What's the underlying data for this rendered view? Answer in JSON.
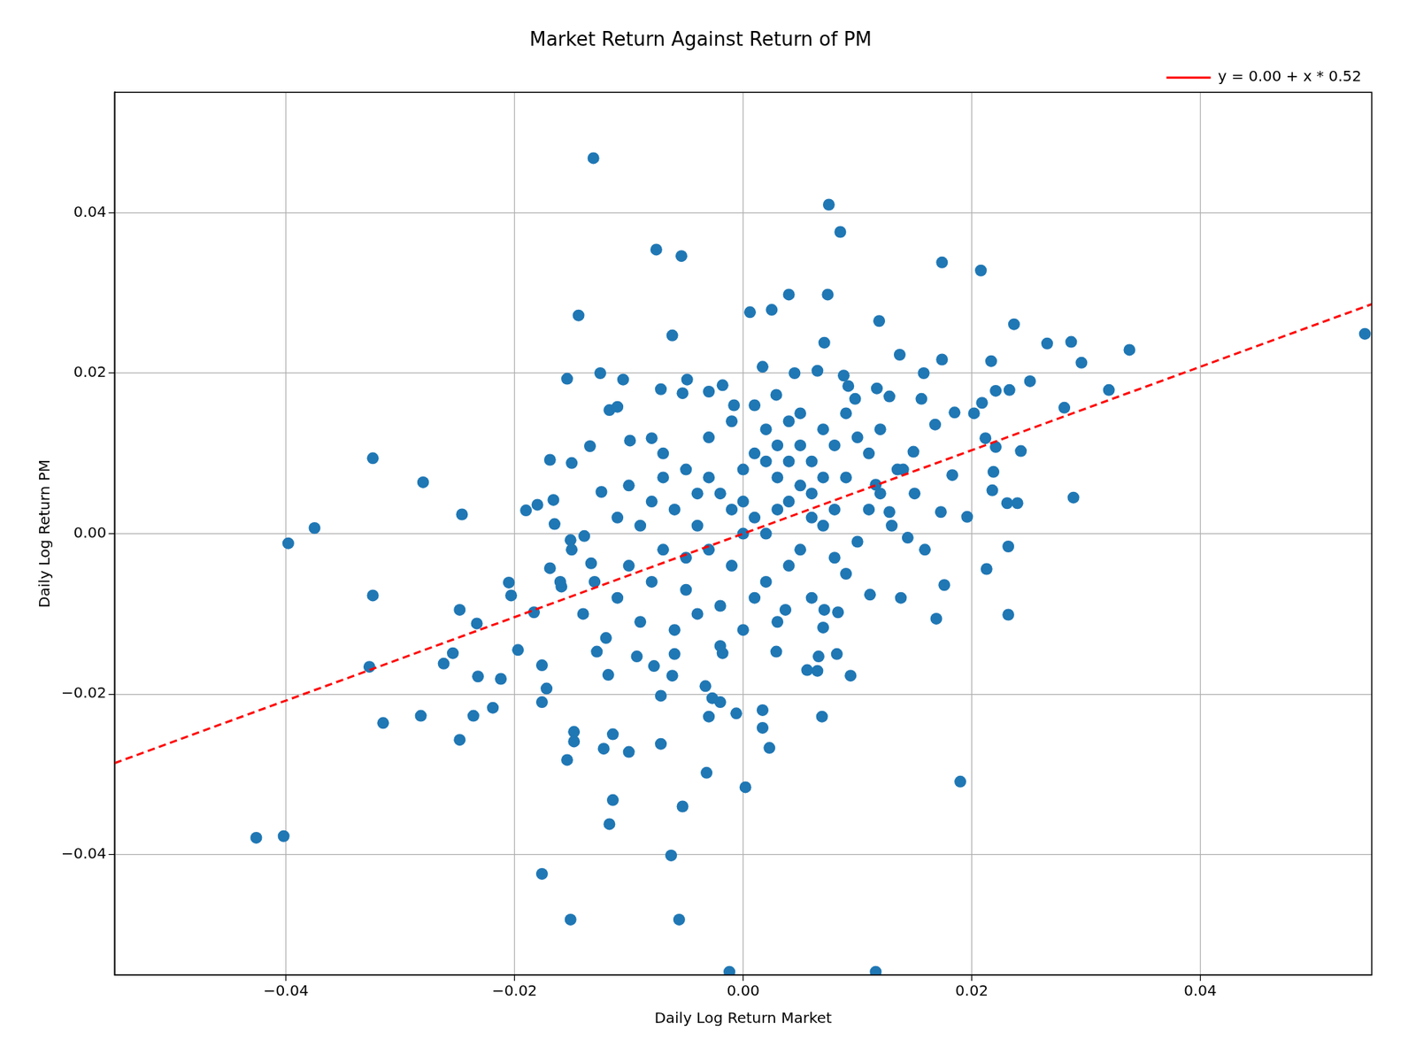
{
  "chart_data": {
    "type": "scatter",
    "title": "Market Return Against Return of PM",
    "x_label": "Daily Log Return Market",
    "y_label": "Daily Log Return PM",
    "xlim": [
      -0.055,
      0.055
    ],
    "ylim": [
      -0.055,
      0.055
    ],
    "xticks": [
      {
        "value": -0.04,
        "label": "−0.04"
      },
      {
        "value": -0.02,
        "label": "−0.02"
      },
      {
        "value": 0,
        "label": "0.00"
      },
      {
        "value": 0.02,
        "label": "0.02"
      },
      {
        "value": 0.04,
        "label": "0.04"
      }
    ],
    "yticks": [
      {
        "value": -0.04,
        "label": "−0.04"
      },
      {
        "value": -0.02,
        "label": "−0.02"
      },
      {
        "value": 0,
        "label": "0.00"
      },
      {
        "value": 0.02,
        "label": "0.02"
      },
      {
        "value": 0.04,
        "label": "0.04"
      }
    ],
    "grid": true,
    "legend": "upper right",
    "series": [
      {
        "type": "scatter",
        "color": "#1f77b4",
        "marker": "circle",
        "x": [
          -0.0131,
          0.0075,
          0.0085,
          -0.0076,
          -0.0054,
          0.0174,
          0.0208,
          -0.0144,
          0.004,
          0.0074,
          0.0006,
          0.0025,
          -0.0062,
          0.0119,
          0.0237,
          0.0544,
          0.0266,
          0.0287,
          0.0338,
          0.0296,
          0.032,
          0.0281,
          0.0217,
          0.0174,
          0.0137,
          0.0071,
          -0.0154,
          -0.0125,
          -0.0105,
          -0.0134,
          -0.0324,
          -0.028,
          -0.0375,
          -0.0398,
          -0.0246,
          -0.0324,
          -0.0327,
          -0.0315,
          -0.0282,
          -0.0248,
          -0.0236,
          -0.0219,
          -0.0212,
          -0.0232,
          -0.0262,
          -0.0254,
          -0.0248,
          -0.0233,
          -0.0426,
          -0.0402,
          -0.0176,
          -0.0151,
          -0.0056,
          -0.0063,
          -0.0117,
          -0.0114,
          -0.0154,
          -0.0148,
          -0.0148,
          -0.0122,
          -0.0114,
          -0.01,
          -0.0072,
          -0.0053,
          -0.0032,
          0.0002,
          -0.0012,
          0.0116,
          -0.0006,
          0.0017,
          0.0017,
          0.0023,
          0.0069,
          0.019,
          0.0232,
          0.0213,
          0.0232,
          0.0289,
          0.024,
          0.0231,
          0.0169,
          0.0176,
          0.0138,
          0.0111,
          0.0071,
          0.0083,
          0.0094,
          0.0082,
          0.0066,
          0.007,
          0.0065,
          0.0056,
          0.0037,
          0.0029,
          -0.0033,
          -0.003,
          -0.002,
          -0.0027,
          -0.0018,
          -0.0072,
          -0.0062,
          -0.0078,
          -0.0093,
          -0.0118,
          -0.0128,
          -0.0176,
          -0.0172,
          -0.0176,
          -0.0197,
          -0.0183,
          -0.0205,
          -0.0203,
          -0.019,
          -0.018,
          -0.0166,
          -0.0169,
          -0.015,
          -0.0165,
          -0.0151,
          -0.0169,
          -0.0159,
          -0.0133,
          -0.0139,
          -0.0124,
          -0.0117,
          -0.011,
          -0.0099,
          -0.008,
          -0.0072,
          -0.0053,
          -0.0049,
          -0.003,
          -0.0018,
          -0.0008,
          0.0017,
          0.0029,
          0.0045,
          0.0065,
          0.0088,
          0.0092,
          0.0098,
          0.0117,
          0.0128,
          0.0156,
          0.0158,
          0.0185,
          0.0202,
          0.0209,
          0.0221,
          0.0233,
          0.0251,
          0.0212,
          0.0221,
          0.0243,
          0.0219,
          0.0218,
          0.0183,
          0.0196,
          0.0173,
          0.0159,
          0.0144,
          0.0128,
          0.0168,
          0.0149,
          0.0135,
          0.0116,
          -0.008,
          -0.007,
          -0.006,
          -0.005,
          -0.004,
          -0.003,
          -0.002,
          -0.001,
          0.0,
          0.001,
          0.002,
          0.003,
          0.004,
          0.005,
          0.006,
          0.007,
          0.008,
          0.009,
          0.01,
          0.011,
          0.012,
          -0.009,
          -0.01,
          -0.011,
          -0.012,
          -0.013,
          -0.008,
          -0.007,
          -0.006,
          -0.005,
          -0.004,
          -0.003,
          -0.002,
          -0.001,
          0.0,
          0.001,
          0.002,
          0.003,
          0.004,
          0.005,
          0.006,
          0.007,
          0.008,
          0.009,
          0.01,
          0.013,
          0.014,
          0.015,
          -0.014,
          -0.015,
          -0.016,
          -0.009,
          -0.01,
          -0.003,
          0.0,
          0.001,
          0.002,
          0.003,
          0.004,
          0.005,
          0.006,
          -0.002,
          -0.001,
          0.0,
          0.001,
          0.002,
          0.003,
          0.004,
          0.005,
          0.006,
          0.007,
          0.008,
          -0.004,
          -0.005,
          -0.006,
          -0.007,
          0.011,
          0.012,
          0.009,
          -0.011
        ],
        "values": [
          0.0468,
          0.041,
          0.0376,
          0.0354,
          0.0346,
          0.0338,
          0.0328,
          0.0272,
          0.0298,
          0.0298,
          0.0276,
          0.0279,
          0.0247,
          0.0265,
          0.0261,
          0.0249,
          0.0237,
          0.0239,
          0.0229,
          0.0213,
          0.0179,
          0.0157,
          0.0215,
          0.0217,
          0.0223,
          0.0238,
          0.0193,
          0.02,
          0.0192,
          0.0109,
          0.0094,
          0.0064,
          0.0007,
          -0.0012,
          0.0024,
          -0.0077,
          -0.0166,
          -0.0236,
          -0.0227,
          -0.0257,
          -0.0227,
          -0.0217,
          -0.0181,
          -0.0178,
          -0.0162,
          -0.0149,
          -0.0095,
          -0.0112,
          -0.0379,
          -0.0377,
          -0.0424,
          -0.0481,
          -0.0481,
          -0.0401,
          -0.0362,
          -0.0332,
          -0.0282,
          -0.0247,
          -0.0259,
          -0.0268,
          -0.025,
          -0.0272,
          -0.0262,
          -0.034,
          -0.0298,
          -0.0316,
          -0.0546,
          -0.0546,
          -0.0224,
          -0.022,
          -0.0242,
          -0.0267,
          -0.0228,
          -0.0309,
          -0.0101,
          -0.0044,
          -0.0016,
          0.0045,
          0.0038,
          0.0038,
          -0.0106,
          -0.0064,
          -0.008,
          -0.0076,
          -0.0095,
          -0.0098,
          -0.0177,
          -0.015,
          -0.0153,
          -0.0117,
          -0.0171,
          -0.017,
          -0.0095,
          -0.0147,
          -0.019,
          -0.0228,
          -0.021,
          -0.0205,
          -0.0149,
          -0.0202,
          -0.0177,
          -0.0165,
          -0.0153,
          -0.0176,
          -0.0147,
          -0.021,
          -0.0193,
          -0.0164,
          -0.0145,
          -0.0098,
          -0.0061,
          -0.0077,
          0.0029,
          0.0036,
          0.0042,
          0.0092,
          0.0088,
          0.0012,
          -0.0008,
          -0.0043,
          -0.0066,
          -0.0037,
          -0.0003,
          0.0052,
          0.0154,
          0.0158,
          0.0116,
          0.0119,
          0.018,
          0.0175,
          0.0192,
          0.0177,
          0.0185,
          0.016,
          0.0208,
          0.0173,
          0.02,
          0.0203,
          0.0197,
          0.0184,
          0.0168,
          0.0181,
          0.0171,
          0.0168,
          0.02,
          0.0151,
          0.015,
          0.0163,
          0.0178,
          0.0179,
          0.019,
          0.0119,
          0.0108,
          0.0103,
          0.0077,
          0.0054,
          0.0073,
          0.0021,
          0.0027,
          -0.002,
          -0.0005,
          0.0027,
          0.0136,
          0.0102,
          0.008,
          0.0061,
          -0.006,
          -0.002,
          0.003,
          0.008,
          -0.01,
          0.012,
          0.005,
          -0.004,
          0.008,
          0.002,
          -0.006,
          0.011,
          0.004,
          -0.002,
          0.009,
          0.013,
          0.003,
          0.007,
          -0.001,
          0.01,
          0.005,
          -0.011,
          -0.004,
          -0.008,
          -0.013,
          -0.006,
          0.004,
          0.01,
          -0.012,
          -0.007,
          0.001,
          -0.002,
          -0.009,
          0.014,
          -0.012,
          0.016,
          0.009,
          -0.011,
          0.014,
          0.006,
          -0.008,
          0.001,
          0.011,
          -0.005,
          0.012,
          0.001,
          0.008,
          0.005,
          -0.01,
          -0.002,
          -0.006,
          0.001,
          0.006,
          0.007,
          0.0,
          -0.008,
          0.013,
          0.003,
          -0.004,
          0.011,
          0.002,
          -0.014,
          0.003,
          0.004,
          0.01,
          0.0,
          0.007,
          0.009,
          0.015,
          0.005,
          0.007,
          -0.003,
          0.005,
          -0.003,
          -0.015,
          0.007,
          0.003,
          0.013,
          0.015,
          0.002
        ]
      },
      {
        "name": "y = 0.00 + x * 0.52",
        "type": "line",
        "color": "#ff0000",
        "line_style": "dashed",
        "x": [
          -0.055,
          0.055
        ],
        "values": [
          -0.0286,
          0.0286
        ]
      }
    ]
  }
}
